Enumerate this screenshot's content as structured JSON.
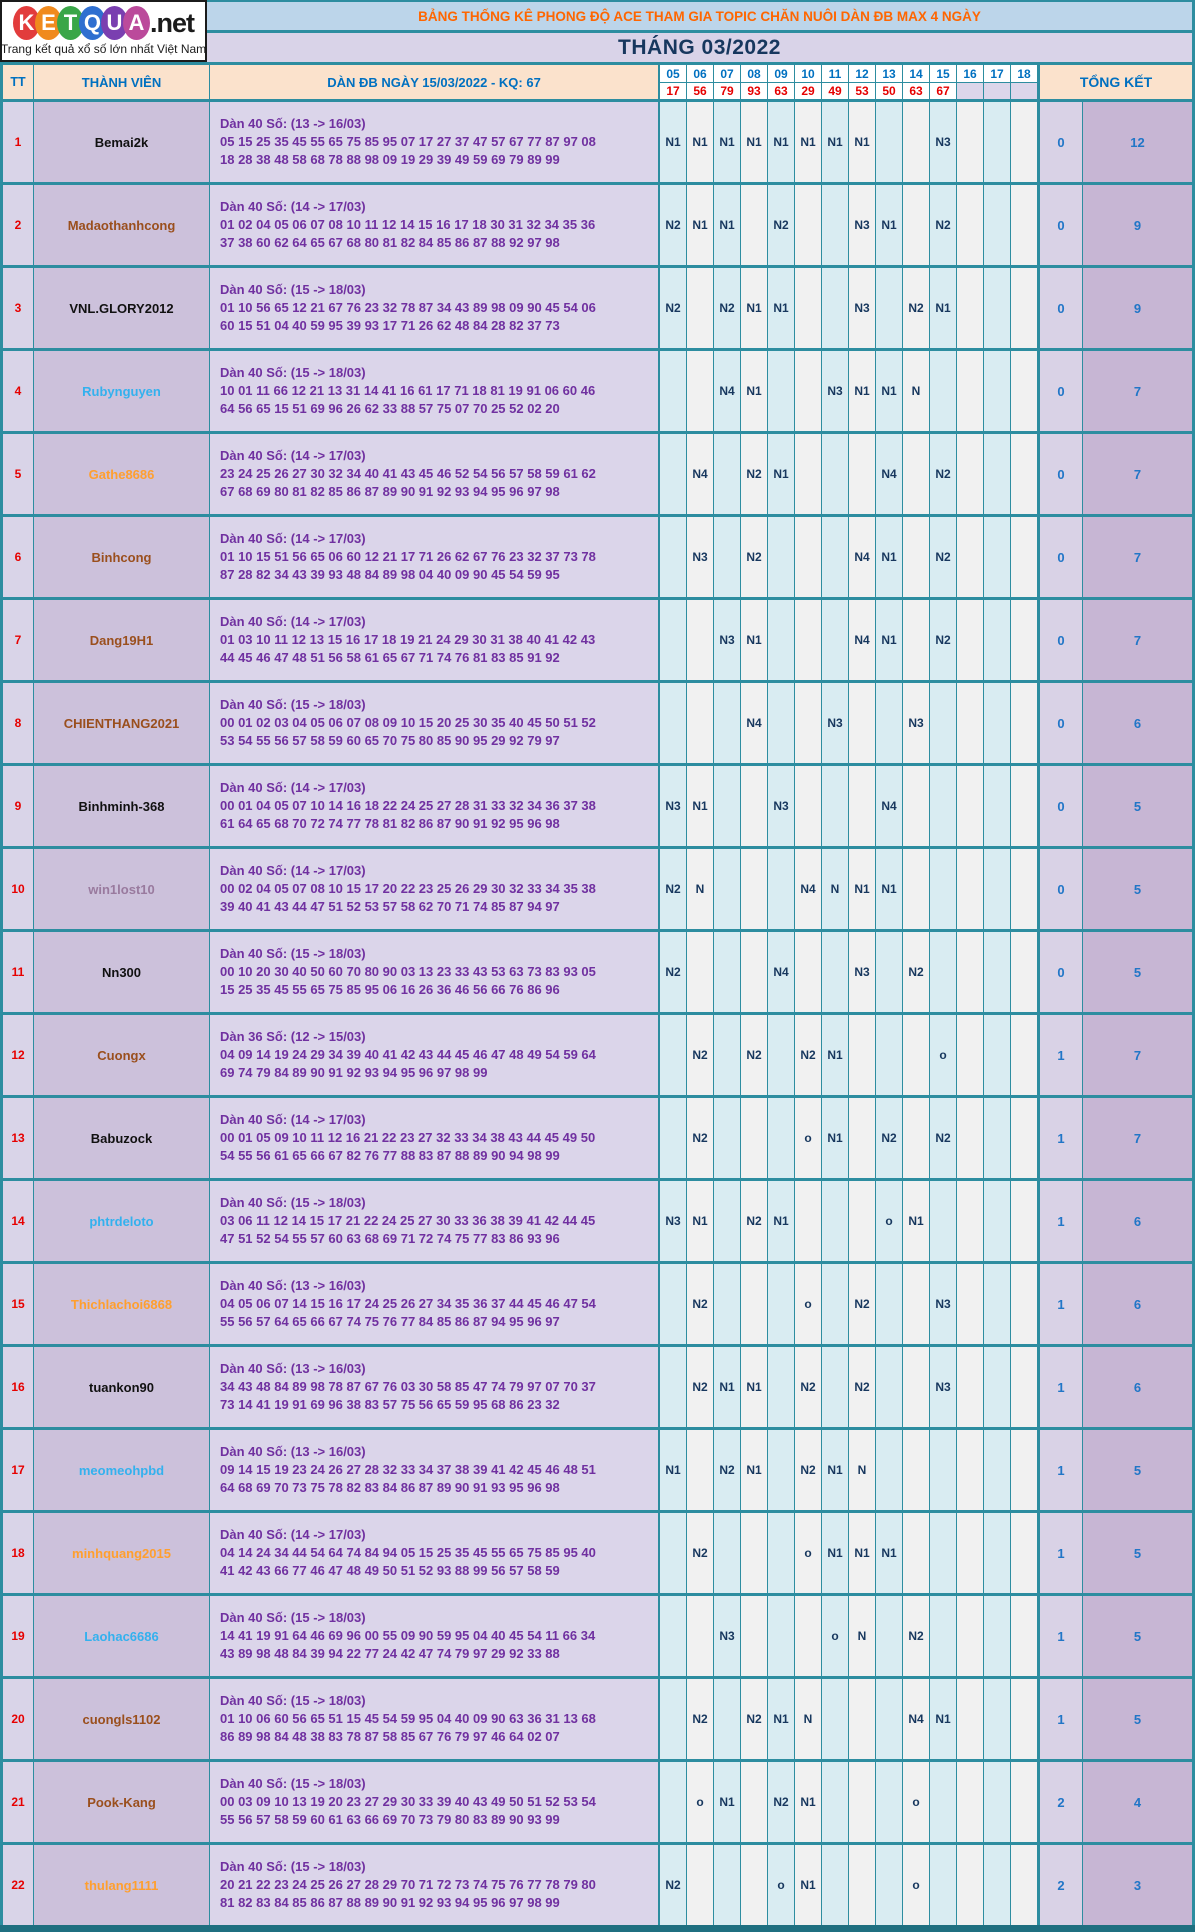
{
  "logo": {
    "letters": [
      {
        "char": "K",
        "color": "#e23c3c"
      },
      {
        "char": "E",
        "color": "#f08a1d"
      },
      {
        "char": "T",
        "color": "#3aa648"
      },
      {
        "char": "Q",
        "color": "#2f6fd0"
      },
      {
        "char": "U",
        "color": "#7a3fb0"
      },
      {
        "char": "A",
        "color": "#bb4a9b"
      }
    ],
    "suffix": ".net",
    "tagline": "Trang kết quả xổ số lớn nhất Việt Nam"
  },
  "header": {
    "title": "BẢNG THỐNG KÊ PHONG ĐỘ ACE THAM GIA TOPIC CHĂN NUÔI DÀN ĐB MAX 4 NGÀY",
    "month": "THÁNG 03/2022"
  },
  "colors": {
    "border_teal": "#2d8da0",
    "title_orange": "#ff6600",
    "header_blue": "#0070c0",
    "result_red": "#e60000",
    "dan_purple": "#7030a0",
    "mark_navy": "#17375e",
    "total_blue": "#2176c7"
  },
  "table": {
    "tt_label": "TT",
    "member_label": "THÀNH VIÊN",
    "dan_label": "DÀN ĐB NGÀY 15/03/2022 - KQ: 67",
    "total_label": "TỔNG KẾT",
    "day_columns": [
      "05",
      "06",
      "07",
      "08",
      "09",
      "10",
      "11",
      "12",
      "13",
      "14",
      "15",
      "16",
      "17",
      "18"
    ],
    "day_results": [
      "17",
      "56",
      "79",
      "93",
      "63",
      "29",
      "49",
      "53",
      "50",
      "63",
      "67",
      "",
      "",
      ""
    ],
    "rows": [
      {
        "tt": "1",
        "name": "Bemai2k",
        "name_color": "#111111",
        "dan_title": "Dàn 40 Số: (13 -> 16/03)",
        "line1": "05 15 25 35 45 55 65 75 85 95 07 17 27 37 47 57 67 77 87 97 08",
        "line2": "18 28 38 48 58 68 78 88 98 09 19 29 39 49 59 69 79 89 99",
        "marks": [
          "N1",
          "N1",
          "N1",
          "N1",
          "N1",
          "N1",
          "N1",
          "N1",
          "",
          "",
          "N3",
          "",
          "",
          ""
        ],
        "miss": "0",
        "score": "12"
      },
      {
        "tt": "2",
        "name": "Madaothanhcong",
        "name_color": "#9a4f1d",
        "dan_title": "Dàn 40 Số: (14 -> 17/03)",
        "line1": "01 02 04 05 06 07 08 10 11 12 14 15 16 17 18 30 31 32 34 35 36",
        "line2": "37 38 60 62 64 65 67 68 80 81 82 84 85 86 87 88 92 97 98",
        "marks": [
          "N2",
          "N1",
          "N1",
          "",
          "N2",
          "",
          "",
          "N3",
          "N1",
          "",
          "N2",
          "",
          "",
          ""
        ],
        "miss": "0",
        "score": "9"
      },
      {
        "tt": "3",
        "name": "VNL.GLORY2012",
        "name_color": "#111111",
        "dan_title": "Dàn 40 Số: (15 -> 18/03)",
        "line1": "01 10 56 65 12 21 67 76 23 32 78 87 34 43 89 98 09 90 45 54 06",
        "line2": "60 15 51 04 40 59 95 39 93 17 71 26 62 48 84 28 82 37 73",
        "marks": [
          "N2",
          "",
          "N2",
          "N1",
          "N1",
          "",
          "",
          "N3",
          "",
          "N2",
          "N1",
          "",
          "",
          ""
        ],
        "miss": "0",
        "score": "9"
      },
      {
        "tt": "4",
        "name": "Rubynguyen",
        "name_color": "#33b1ee",
        "dan_title": "Dàn 40 Số: (15 -> 18/03)",
        "line1": "10 01 11 66 12 21 13 31 14 41 16 61 17 71 18 81 19 91 06 60 46",
        "line2": "64 56 65 15 51 69 96 26 62 33 88 57 75 07 70 25 52 02 20",
        "marks": [
          "",
          "",
          "N4",
          "N1",
          "",
          "",
          "N3",
          "N1",
          "N1",
          "N",
          "",
          "",
          "",
          ""
        ],
        "miss": "0",
        "score": "7"
      },
      {
        "tt": "5",
        "name": "Gathe8686",
        "name_color": "#ff9f2e",
        "dan_title": "Dàn 40 Số: (14 -> 17/03)",
        "line1": "23 24 25 26 27 30 32 34 40 41 43 45 46 52 54 56 57 58 59 61 62",
        "line2": "67 68 69 80 81 82 85 86 87 89 90 91 92 93 94 95 96 97 98",
        "marks": [
          "",
          "N4",
          "",
          "N2",
          "N1",
          "",
          "",
          "",
          "N4",
          "",
          "N2",
          "",
          "",
          ""
        ],
        "miss": "0",
        "score": "7"
      },
      {
        "tt": "6",
        "name": "Binhcong",
        "name_color": "#9a4f1d",
        "dan_title": "Dàn 40 Số: (14 -> 17/03)",
        "line1": "01 10 15 51 56 65 06 60 12 21 17 71 26 62 67 76 23 32 37 73 78",
        "line2": "87 28 82 34 43 39 93 48 84 89 98 04 40 09 90 45 54 59 95",
        "marks": [
          "",
          "N3",
          "",
          "N2",
          "",
          "",
          "",
          "N4",
          "N1",
          "",
          "N2",
          "",
          "",
          ""
        ],
        "miss": "0",
        "score": "7"
      },
      {
        "tt": "7",
        "name": "Dang19H1",
        "name_color": "#9a4f1d",
        "dan_title": "Dàn 40 Số: (14 -> 17/03)",
        "line1": "01 03 10 11 12 13 15 16 17 18 19 21 24 29 30 31 38 40 41 42 43",
        "line2": "44 45 46 47 48 51 56 58 61 65 67 71 74 76 81 83 85 91 92",
        "marks": [
          "",
          "",
          "N3",
          "N1",
          "",
          "",
          "",
          "N4",
          "N1",
          "",
          "N2",
          "",
          "",
          ""
        ],
        "miss": "0",
        "score": "7"
      },
      {
        "tt": "8",
        "name": "CHIENTHANG2021",
        "name_color": "#9a4f1d",
        "dan_title": "Dàn 40 Số: (15 -> 18/03)",
        "line1": "00 01 02 03 04 05 06 07 08 09 10 15 20 25 30 35 40 45 50 51 52",
        "line2": "53 54 55 56 57 58 59 60 65 70 75 80 85 90 95 29 92 79 97",
        "marks": [
          "",
          "",
          "",
          "N4",
          "",
          "",
          "N3",
          "",
          "",
          "N3",
          "",
          "",
          "",
          ""
        ],
        "miss": "0",
        "score": "6"
      },
      {
        "tt": "9",
        "name": "Binhminh-368",
        "name_color": "#111111",
        "dan_title": "Dàn 40 Số: (14 -> 17/03)",
        "line1": "00 01 04 05 07 10 14 16 18 22 24 25 27 28 31 33 32 34 36 37 38",
        "line2": "61 64 65 68 70 72 74 77 78 81 82 86 87 90 91 92 95 96 98",
        "marks": [
          "N3",
          "N1",
          "",
          "",
          "N3",
          "",
          "",
          "",
          "N4",
          "",
          "",
          "",
          "",
          ""
        ],
        "miss": "0",
        "score": "5"
      },
      {
        "tt": "10",
        "name": "win1lost10",
        "name_color": "#997a9e",
        "dan_title": "Dàn 40 Số: (14 -> 17/03)",
        "line1": "00 02 04 05 07 08 10 15 17 20 22 23 25 26 29 30 32 33 34 35 38",
        "line2": "39 40 41 43 44 47 51 52 53 57 58 62 70 71 74 85 87 94 97",
        "marks": [
          "N2",
          "N",
          "",
          "",
          "",
          "N4",
          "N",
          "N1",
          "N1",
          "",
          "",
          "",
          "",
          ""
        ],
        "miss": "0",
        "score": "5"
      },
      {
        "tt": "11",
        "name": "Nn300",
        "name_color": "#111111",
        "dan_title": "Dàn 40 Số: (15 -> 18/03)",
        "line1": "00 10 20 30 40 50 60 70 80 90 03 13 23 33 43 53 63 73 83 93 05",
        "line2": "15 25 35 45 55 65 75 85 95 06 16 26 36 46 56 66 76 86 96",
        "marks": [
          "N2",
          "",
          "",
          "",
          "N4",
          "",
          "",
          "N3",
          "",
          "N2",
          "",
          "",
          "",
          ""
        ],
        "miss": "0",
        "score": "5"
      },
      {
        "tt": "12",
        "name": "Cuongx",
        "name_color": "#9a4f1d",
        "dan_title": "Dàn 36 Số: (12 -> 15/03)",
        "line1": "04 09 14 19 24 29 34 39 40 41 42 43 44 45 46 47 48 49 54 59 64",
        "line2": "69 74 79 84 89 90 91 92 93 94 95 96 97 98 99",
        "marks": [
          "",
          "N2",
          "",
          "N2",
          "",
          "N2",
          "N1",
          "",
          "",
          "",
          "o",
          "",
          "",
          ""
        ],
        "miss": "1",
        "score": "7"
      },
      {
        "tt": "13",
        "name": "Babuzock",
        "name_color": "#111111",
        "dan_title": "Dàn 40 Số: (14 -> 17/03)",
        "line1": "00 01 05 09 10 11 12 16 21 22 23 27 32 33 34 38 43 44 45 49 50",
        "line2": "54 55 56 61 65 66 67 82 76 77 88 83 87 88 89 90 94 98 99",
        "marks": [
          "",
          "N2",
          "",
          "",
          "",
          "o",
          "N1",
          "",
          "N2",
          "",
          "N2",
          "",
          "",
          ""
        ],
        "miss": "1",
        "score": "7"
      },
      {
        "tt": "14",
        "name": "phtrdeloto",
        "name_color": "#33b1ee",
        "dan_title": "Dàn 40 Số: (15 -> 18/03)",
        "line1": "03 06 11 12 14 15 17 21 22 24 25 27 30 33 36 38 39 41 42 44 45",
        "line2": "47 51 52 54 55 57 60 63 68 69 71 72 74 75 77 83 86 93 96",
        "marks": [
          "N3",
          "N1",
          "",
          "N2",
          "N1",
          "",
          "",
          "",
          "o",
          "N1",
          "",
          "",
          "",
          ""
        ],
        "miss": "1",
        "score": "6"
      },
      {
        "tt": "15",
        "name": "Thichlachoi6868",
        "name_color": "#ff9f2e",
        "dan_title": "Dàn 40 Số: (13 -> 16/03)",
        "line1": "04 05 06 07 14 15 16 17 24 25 26 27 34 35 36 37 44 45 46 47 54",
        "line2": "55 56 57 64 65 66 67 74 75 76 77 84 85 86 87 94 95 96 97",
        "marks": [
          "",
          "N2",
          "",
          "",
          "",
          "o",
          "",
          "N2",
          "",
          "",
          "N3",
          "",
          "",
          ""
        ],
        "miss": "1",
        "score": "6"
      },
      {
        "tt": "16",
        "name": "tuankon90",
        "name_color": "#111111",
        "dan_title": "Dàn 40 Số: (13 -> 16/03)",
        "line1": "34 43 48 84 89 98 78 87 67 76 03 30 58 85 47 74 79 97 07 70 37",
        "line2": "73 14 41 19 91 69 96 38 83 57 75 56 65 59 95 68 86 23 32",
        "marks": [
          "",
          "N2",
          "N1",
          "N1",
          "",
          "N2",
          "",
          "N2",
          "",
          "",
          "N3",
          "",
          "",
          ""
        ],
        "miss": "1",
        "score": "6"
      },
      {
        "tt": "17",
        "name": "meomeohpbd",
        "name_color": "#33b1ee",
        "dan_title": "Dàn 40 Số: (13 -> 16/03)",
        "line1": "09 14 15 19 23 24 26 27 28 32 33 34 37 38 39 41 42 45 46 48 51",
        "line2": "64 68 69 70 73 75 78 82 83 84 86 87 89 90 91 93 95 96 98",
        "marks": [
          "N1",
          "",
          "N2",
          "N1",
          "",
          "N2",
          "N1",
          "N",
          "",
          "",
          "",
          "",
          "",
          ""
        ],
        "miss": "1",
        "score": "5"
      },
      {
        "tt": "18",
        "name": "minhquang2015",
        "name_color": "#ff9f2e",
        "dan_title": "Dàn 40 Số: (14 -> 17/03)",
        "line1": "04 14 24 34 44 54 64 74 84 94 05 15 25 35 45 55 65 75 85 95 40",
        "line2": "41 42 43 66 77 46 47 48 49 50 51 52 93 88 99 56 57 58 59",
        "marks": [
          "",
          "N2",
          "",
          "",
          "",
          "o",
          "N1",
          "N1",
          "N1",
          "",
          "",
          "",
          "",
          ""
        ],
        "miss": "1",
        "score": "5"
      },
      {
        "tt": "19",
        "name": "Laohac6686",
        "name_color": "#33b1ee",
        "dan_title": "Dàn 40 Số: (15 -> 18/03)",
        "line1": "14 41 19 91 64 46 69 96 00 55 09 90 59 95 04 40 45 54 11 66 34",
        "line2": "43 89 98 48 84 39 94 22 77 24 42 47 74 79 97 29 92 33 88",
        "marks": [
          "",
          "",
          "N3",
          "",
          "",
          "",
          "o",
          "N",
          "",
          "N2",
          "",
          "",
          "",
          ""
        ],
        "miss": "1",
        "score": "5"
      },
      {
        "tt": "20",
        "name": "cuongls1102",
        "name_color": "#9a4f1d",
        "dan_title": "Dàn 40 Số: (15 -> 18/03)",
        "line1": "01 10 06 60 56 65 51 15 45 54 59 95 04 40 09 90 63 36 31 13 68",
        "line2": "86 89 98 84 48 38 83 78 87 58 85 67 76 79 97 46 64 02 07",
        "marks": [
          "",
          "N2",
          "",
          "N2",
          "N1",
          "N",
          "",
          "",
          "",
          "N4",
          "N1",
          "",
          "",
          ""
        ],
        "miss": "1",
        "score": "5"
      },
      {
        "tt": "21",
        "name": "Pook-Kang",
        "name_color": "#9a4f1d",
        "dan_title": "Dàn 40 Số: (15 -> 18/03)",
        "line1": "00 03 09 10 13 19 20 23 27 29 30 33 39 40 43 49 50 51 52 53 54",
        "line2": "55 56 57 58 59 60 61 63 66 69 70 73 79 80 83 89 90 93 99",
        "marks": [
          "",
          "o",
          "N1",
          "",
          "N2",
          "N1",
          "",
          "",
          "",
          "o",
          "",
          "",
          "",
          ""
        ],
        "miss": "2",
        "score": "4"
      },
      {
        "tt": "22",
        "name": "thulang1111",
        "name_color": "#ff9f2e",
        "dan_title": "Dàn 40 Số: (15 -> 18/03)",
        "line1": "20 21 22 23 24 25 26 27 28 29 70 71 72 73 74 75 76 77 78 79 80",
        "line2": "81 82 83 84 85 86 87 88 89 90 91 92 93 94 95 96 97 98 99",
        "marks": [
          "N2",
          "",
          "",
          "",
          "o",
          "N1",
          "",
          "",
          "",
          "o",
          "",
          "",
          "",
          ""
        ],
        "miss": "2",
        "score": "3"
      }
    ]
  }
}
